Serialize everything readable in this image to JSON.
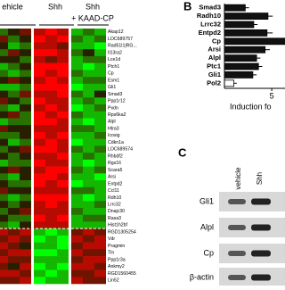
{
  "heatmap": {
    "groups": [
      "ehicle",
      "Shh",
      "Shh\n+ KAAD-CP"
    ],
    "genes": [
      "Akap12",
      "LOC689757",
      "Rad51l1|RG...",
      "Il13ra2",
      "Lce1d",
      "Ptch1",
      "Cp",
      "Esm1",
      "Gli1",
      "Smad3",
      "Ppp1r12",
      "Pxdn",
      "Rps6ka2",
      "Alpl",
      "Htra3",
      "Icosig",
      "Cdkn1a",
      "LOC689574",
      "Rhbdf2",
      "Rgs16",
      "Scara5",
      "Arsi",
      "Entpd2",
      "Ccl11",
      "Rdh10",
      "Lrrc32",
      "Dnajc30",
      "Rasa3",
      "Hist1h2bf",
      "RGD1305254",
      "Vdr",
      "Pragmin",
      "Tln",
      "Ppp1r3a",
      "Ankmy2",
      "RGD1560455",
      "Lin52"
    ],
    "values": [
      [
        -1,
        0,
        1,
        2,
        3,
        2,
        -2,
        -1,
        -2
      ],
      [
        1,
        -1,
        0,
        3,
        2,
        3,
        -1,
        -2,
        -1
      ],
      [
        0,
        -2,
        -1,
        2,
        2,
        1,
        -2,
        -2,
        -3
      ],
      [
        -1,
        1,
        0,
        3,
        3,
        2,
        -1,
        0,
        -2
      ],
      [
        0,
        0,
        -1,
        2,
        1,
        2,
        -2,
        -1,
        -1
      ],
      [
        -2,
        -1,
        0,
        3,
        3,
        3,
        -2,
        -3,
        -2
      ],
      [
        -1,
        -2,
        -1,
        3,
        2,
        3,
        -1,
        -2,
        -2
      ],
      [
        0,
        1,
        0,
        2,
        3,
        2,
        -2,
        -1,
        -1
      ],
      [
        -2,
        -2,
        -1,
        3,
        3,
        3,
        -3,
        -2,
        -2
      ],
      [
        0,
        -1,
        1,
        2,
        2,
        3,
        -1,
        -2,
        0
      ],
      [
        1,
        0,
        -1,
        3,
        2,
        2,
        -2,
        -1,
        -2
      ],
      [
        -1,
        -2,
        0,
        2,
        3,
        2,
        -3,
        -2,
        -1
      ],
      [
        0,
        1,
        -1,
        3,
        2,
        3,
        -1,
        -2,
        -2
      ],
      [
        -2,
        -1,
        -1,
        3,
        3,
        2,
        -2,
        -3,
        -2
      ],
      [
        1,
        0,
        0,
        2,
        2,
        2,
        -1,
        -1,
        -2
      ],
      [
        -1,
        -1,
        0,
        3,
        2,
        3,
        -2,
        -2,
        -1
      ],
      [
        0,
        -2,
        -1,
        2,
        3,
        2,
        -3,
        -2,
        -2
      ],
      [
        -1,
        0,
        1,
        3,
        3,
        2,
        -1,
        -2,
        -1
      ],
      [
        0,
        -1,
        0,
        2,
        2,
        3,
        -2,
        -1,
        -2
      ],
      [
        -2,
        -1,
        -1,
        3,
        2,
        2,
        -2,
        -3,
        -2
      ],
      [
        0,
        1,
        0,
        2,
        3,
        3,
        -1,
        -2,
        -1
      ],
      [
        -1,
        -2,
        0,
        3,
        3,
        2,
        -2,
        -2,
        -3
      ],
      [
        0,
        -1,
        -1,
        3,
        2,
        3,
        -3,
        -2,
        -2
      ],
      [
        1,
        0,
        0,
        2,
        2,
        2,
        -1,
        -1,
        -2
      ],
      [
        -1,
        -2,
        -1,
        3,
        3,
        3,
        -2,
        -3,
        -2
      ],
      [
        0,
        -1,
        0,
        2,
        3,
        2,
        -2,
        -2,
        -1
      ],
      [
        -1,
        0,
        1,
        2,
        2,
        2,
        -1,
        -2,
        -2
      ],
      [
        0,
        -1,
        -1,
        3,
        2,
        3,
        -2,
        -1,
        -1
      ],
      [
        -1,
        -2,
        0,
        2,
        2,
        2,
        -2,
        -2,
        -2
      ],
      [
        2,
        1,
        2,
        -2,
        -3,
        -2,
        1,
        2,
        1
      ],
      [
        1,
        2,
        1,
        -3,
        -2,
        -3,
        2,
        1,
        2
      ],
      [
        2,
        1,
        0,
        -2,
        -2,
        -3,
        1,
        2,
        2
      ],
      [
        1,
        2,
        2,
        -3,
        -3,
        -2,
        2,
        1,
        1
      ],
      [
        2,
        1,
        1,
        -2,
        -2,
        -2,
        1,
        2,
        2
      ],
      [
        1,
        0,
        2,
        -3,
        -2,
        -3,
        2,
        2,
        1
      ],
      [
        2,
        2,
        1,
        -2,
        -3,
        -2,
        1,
        1,
        2
      ],
      [
        1,
        1,
        2,
        -3,
        -2,
        -2,
        2,
        1,
        1
      ]
    ]
  },
  "bar_chart": {
    "panel": "B",
    "categories": [
      "Smad3",
      "Radh10",
      "Lrrc32",
      "Entpd2",
      "Cp",
      "Arsi",
      "Alpl",
      "Ptc1",
      "Gli1",
      "Pol2"
    ],
    "values": [
      2.2,
      4.6,
      3.1,
      4.5,
      7,
      4.3,
      3.4,
      3.6,
      3,
      1
    ],
    "errors": [
      0.4,
      0.5,
      0.4,
      0.6,
      0.8,
      0.5,
      0.4,
      0.4,
      0.4,
      0.3
    ],
    "colors": [
      "#111",
      "#111",
      "#111",
      "#111",
      "#111",
      "#111",
      "#111",
      "#111",
      "#111",
      "#fff"
    ],
    "xlim": [
      0,
      6.4
    ],
    "xticks": [
      5
    ],
    "xlabel": "Induction fo"
  },
  "blot": {
    "panel": "C",
    "lanes": [
      "vehicle",
      "Shh"
    ],
    "rows": [
      "Gli1",
      "Alpl",
      "Cp",
      "β-actin"
    ]
  }
}
